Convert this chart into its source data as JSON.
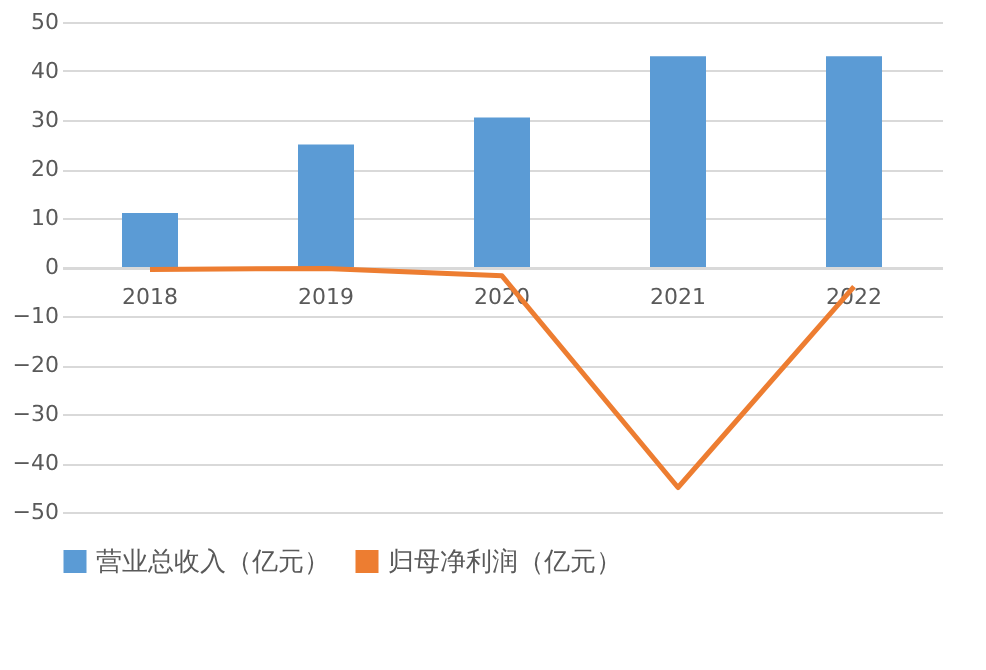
{
  "chart_data": {
    "type": "bar",
    "categories": [
      "2018",
      "2019",
      "2020",
      "2021",
      "2022"
    ],
    "series": [
      {
        "name": "营业总收入（亿元）",
        "color": "#5b9bd5",
        "values": [
          11,
          25,
          30.5,
          43,
          43
        ]
      },
      {
        "name": "归母净利润（亿元）",
        "color": "#ed7d31",
        "type": "line",
        "values": [
          -0.5,
          -0.3,
          -1.8,
          -45,
          -4
        ]
      }
    ],
    "ylim": [
      -50,
      50
    ],
    "yticks": [
      -50,
      -40,
      -30,
      -20,
      -10,
      0,
      10,
      20,
      30,
      40,
      50
    ],
    "grid": "y",
    "legend": "bottom"
  }
}
